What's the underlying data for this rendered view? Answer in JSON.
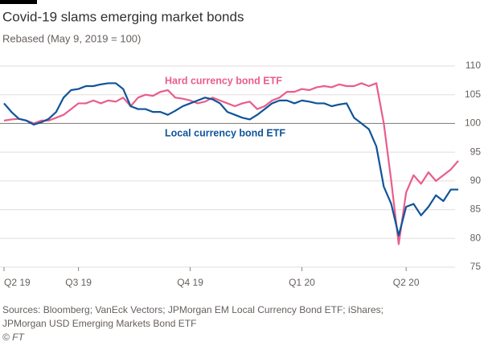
{
  "chart_data": {
    "type": "line",
    "title": "Covid-19 slams emerging market bonds",
    "subtitle": "Rebased (May 9, 2019 = 100)",
    "categories": [
      "Q2 19",
      null,
      null,
      null,
      null,
      null,
      null,
      null,
      null,
      null,
      "Q3 19",
      null,
      null,
      null,
      null,
      null,
      null,
      null,
      null,
      null,
      null,
      null,
      null,
      null,
      null,
      "Q4 19",
      null,
      null,
      null,
      null,
      null,
      null,
      null,
      null,
      null,
      null,
      null,
      null,
      null,
      null,
      "Q1 20",
      null,
      null,
      null,
      null,
      null,
      null,
      null,
      null,
      null,
      null,
      null,
      null,
      null,
      "Q2 20",
      null,
      null,
      null,
      null,
      null,
      null,
      null
    ],
    "series": [
      {
        "name": "Hard currency bond ETF",
        "color": "#e95d8c",
        "values": [
          100.5,
          100.7,
          100.8,
          100.5,
          100.0,
          100.5,
          100.5,
          101,
          101.5,
          102.5,
          103.5,
          103.5,
          104,
          103.5,
          104,
          103.8,
          104.5,
          103,
          104.5,
          105,
          104.8,
          105.5,
          105.8,
          104.5,
          104.3,
          104,
          103.5,
          103.8,
          104.5,
          104,
          103.5,
          103,
          103.5,
          103.8,
          102.5,
          103,
          104,
          104.5,
          105.5,
          105.5,
          106,
          105.8,
          106.3,
          106.5,
          106.3,
          106.8,
          106.5,
          106.5,
          107,
          106.5,
          107,
          100,
          90,
          79,
          88,
          91,
          89.5,
          91.5,
          90,
          91,
          92,
          93.5
        ]
      },
      {
        "name": "Local currency bond ETF",
        "color": "#0f5499",
        "values": [
          103.5,
          102,
          100.8,
          100.5,
          99.8,
          100.2,
          100.8,
          102,
          104.5,
          105.8,
          106,
          106.5,
          106.5,
          106.8,
          107,
          107,
          106,
          103,
          102.5,
          102.5,
          102,
          102,
          101.5,
          102.2,
          103,
          103.5,
          104,
          104.5,
          104.2,
          103.5,
          102,
          101.5,
          101,
          100.7,
          101.5,
          102.5,
          103.5,
          104,
          104,
          103.5,
          104,
          103.8,
          103.5,
          103.5,
          103,
          103.3,
          103.5,
          101,
          100,
          99,
          96,
          89,
          86,
          80.5,
          85.5,
          86,
          84,
          85.5,
          87.5,
          86.5,
          88.5,
          88.5
        ]
      }
    ],
    "ylim": [
      75,
      110
    ],
    "yticks": [
      75,
      80,
      85,
      90,
      95,
      100,
      105,
      110
    ],
    "highlight_line": 100,
    "grid": true,
    "source": [
      "Sources: Bloomberg; VanEck Vectors; JPMorgan EM Local Currency Bond ETF; iShares;",
      "JPMorgan USD Emerging Markets Bond ETF",
      "© FT"
    ]
  }
}
